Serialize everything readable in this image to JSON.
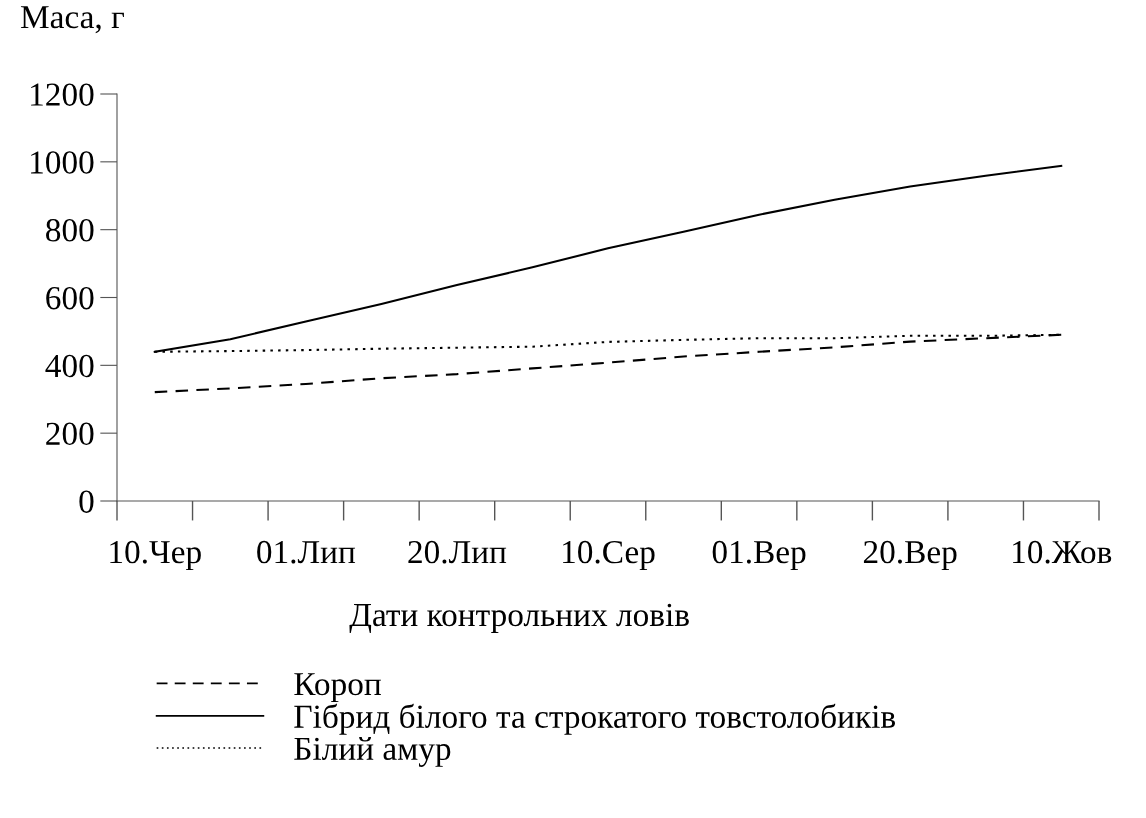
{
  "chart_data": {
    "type": "line",
    "ylabel": "Маса, г",
    "xlabel": "Дати контрольних ловів",
    "categories": [
      "10.Чер",
      null,
      "01.Лип",
      null,
      "20.Лип",
      null,
      "10.Сер",
      null,
      "01.Вер",
      null,
      "20.Вер",
      null,
      "10.Жов"
    ],
    "series": [
      {
        "name": "Короп",
        "color": "#000000",
        "line_style": "dashed",
        "values": [
          321,
          332,
          345,
          362,
          374,
          391,
          408,
          426,
          440,
          453,
          470,
          480,
          490
        ]
      },
      {
        "name": "Гібрид білого та строкатого товстолобиків",
        "color": "#000000",
        "line_style": "solid",
        "values": [
          440,
          477,
          529,
          581,
          637,
          689,
          745,
          794,
          844,
          888,
          927,
          959,
          988
        ]
      },
      {
        "name": "Білий амур",
        "color": "#000000",
        "line_style": "dotted",
        "values": [
          440,
          442,
          445,
          449,
          452,
          455,
          469,
          475,
          480,
          480,
          487,
          487,
          490
        ]
      }
    ],
    "ylim": [
      0,
      1200
    ],
    "yticks": [
      0,
      200,
      400,
      600,
      800,
      1000,
      1200
    ],
    "grid": false,
    "legend": "bottom",
    "marker": "none"
  }
}
